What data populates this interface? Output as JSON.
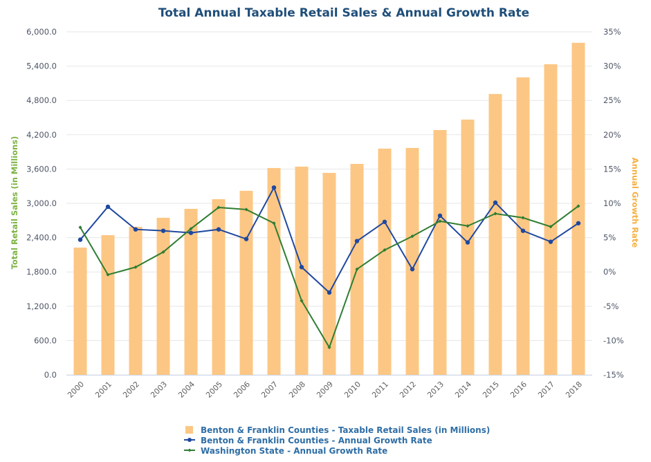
{
  "chart_data": {
    "type": "bar",
    "title": "Total Annual Taxable Retail Sales & Annual Growth Rate",
    "xlabel": "",
    "ylabel": "Total Retail Sales (in Millions)",
    "y2label": "Annual Growth Rate",
    "ylim": [
      0,
      6000
    ],
    "y2lim": [
      -15,
      35
    ],
    "yticks": [
      "0.0",
      "600.0",
      "1,200.0",
      "1,800.0",
      "2,400.0",
      "3,000.0",
      "3,600.0",
      "4,200.0",
      "4,800.0",
      "5,400.0",
      "6,000.0"
    ],
    "y2ticks": [
      "-15%",
      "-10%",
      "-5%",
      "0%",
      "5%",
      "10%",
      "15%",
      "20%",
      "25%",
      "30%",
      "35%"
    ],
    "grid": true,
    "legend_position": "bottom-center",
    "categories": [
      "2000",
      "2001",
      "2002",
      "2003",
      "2004",
      "2005",
      "2006",
      "2007",
      "2008",
      "2009",
      "2010",
      "2011",
      "2012",
      "2013",
      "2014",
      "2015",
      "2016",
      "2017",
      "2018"
    ],
    "series": [
      {
        "name": "Benton & Franklin Counties - Taxable Retail Sales (in Millions)",
        "type": "bar",
        "axis": "left",
        "color": "#fcc784",
        "values": [
          2226,
          2444,
          2590,
          2747,
          2904,
          3073,
          3219,
          3618,
          3642,
          3533,
          3690,
          3957,
          3969,
          4283,
          4465,
          4913,
          5203,
          5433,
          5808
        ]
      },
      {
        "name": "Benton & Franklin Counties - Annual Growth Rate",
        "type": "line",
        "axis": "right",
        "color": "#1f48a0",
        "values": [
          4.7,
          9.5,
          6.2,
          6.0,
          5.7,
          6.2,
          4.8,
          12.3,
          0.7,
          -3.0,
          4.5,
          7.3,
          0.4,
          8.2,
          4.3,
          10.1,
          6.0,
          4.4,
          7.1
        ]
      },
      {
        "name": "Washington State - Annual Growth Rate",
        "type": "line",
        "axis": "right",
        "color": "#2e7d32",
        "values": [
          6.5,
          -0.4,
          0.7,
          2.9,
          6.3,
          9.4,
          9.1,
          7.1,
          -4.2,
          -11.0,
          0.4,
          3.2,
          5.2,
          7.4,
          6.7,
          8.5,
          7.9,
          6.6,
          9.6
        ]
      }
    ]
  }
}
